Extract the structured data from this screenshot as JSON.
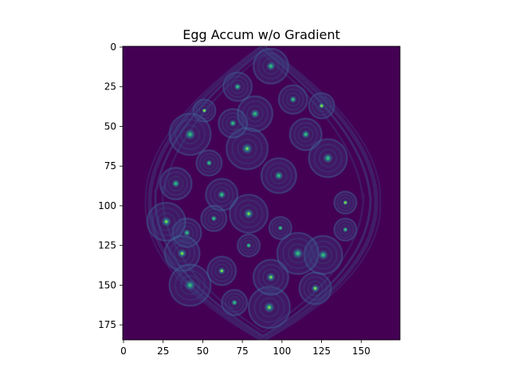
{
  "chart_data": {
    "type": "heatmap",
    "title": "Egg Accum w/o Gradient",
    "xlabel": "",
    "ylabel": "",
    "image_size": [
      175,
      185
    ],
    "xlim": [
      -0.5,
      174.5
    ],
    "ylim": [
      184.5,
      -0.5
    ],
    "xticks": [
      0,
      25,
      50,
      75,
      100,
      125,
      150
    ],
    "yticks": [
      0,
      25,
      50,
      75,
      100,
      125,
      150,
      175
    ],
    "colormap": "viridis",
    "background_color": "#440154",
    "ring_color": "#3b528b",
    "peak_color": "#2fb47c",
    "grid": false,
    "egg_outline": {
      "cx": 88,
      "top_y": 0,
      "bottom_y": 184,
      "max_half_width": 80,
      "widest_y": 120
    },
    "accumulator_peaks": [
      {
        "x": 51,
        "y": 40
      },
      {
        "x": 72,
        "y": 25
      },
      {
        "x": 83,
        "y": 42
      },
      {
        "x": 78,
        "y": 64
      },
      {
        "x": 54,
        "y": 73
      },
      {
        "x": 62,
        "y": 93
      },
      {
        "x": 79,
        "y": 105
      },
      {
        "x": 99,
        "y": 114
      },
      {
        "x": 40,
        "y": 117
      },
      {
        "x": 37,
        "y": 130
      },
      {
        "x": 42,
        "y": 150
      },
      {
        "x": 70,
        "y": 161
      },
      {
        "x": 121,
        "y": 152
      },
      {
        "x": 126,
        "y": 131
      },
      {
        "x": 79,
        "y": 125
      },
      {
        "x": 62,
        "y": 141
      },
      {
        "x": 98,
        "y": 81
      },
      {
        "x": 110,
        "y": 130
      },
      {
        "x": 125,
        "y": 37
      },
      {
        "x": 115,
        "y": 55
      },
      {
        "x": 129,
        "y": 70
      },
      {
        "x": 140,
        "y": 98
      },
      {
        "x": 107,
        "y": 33
      },
      {
        "x": 93,
        "y": 12
      },
      {
        "x": 92,
        "y": 164
      },
      {
        "x": 57,
        "y": 108
      },
      {
        "x": 33,
        "y": 86
      },
      {
        "x": 27,
        "y": 110
      },
      {
        "x": 140,
        "y": 115
      },
      {
        "x": 69,
        "y": 48
      },
      {
        "x": 93,
        "y": 145
      },
      {
        "x": 42,
        "y": 55
      }
    ]
  }
}
